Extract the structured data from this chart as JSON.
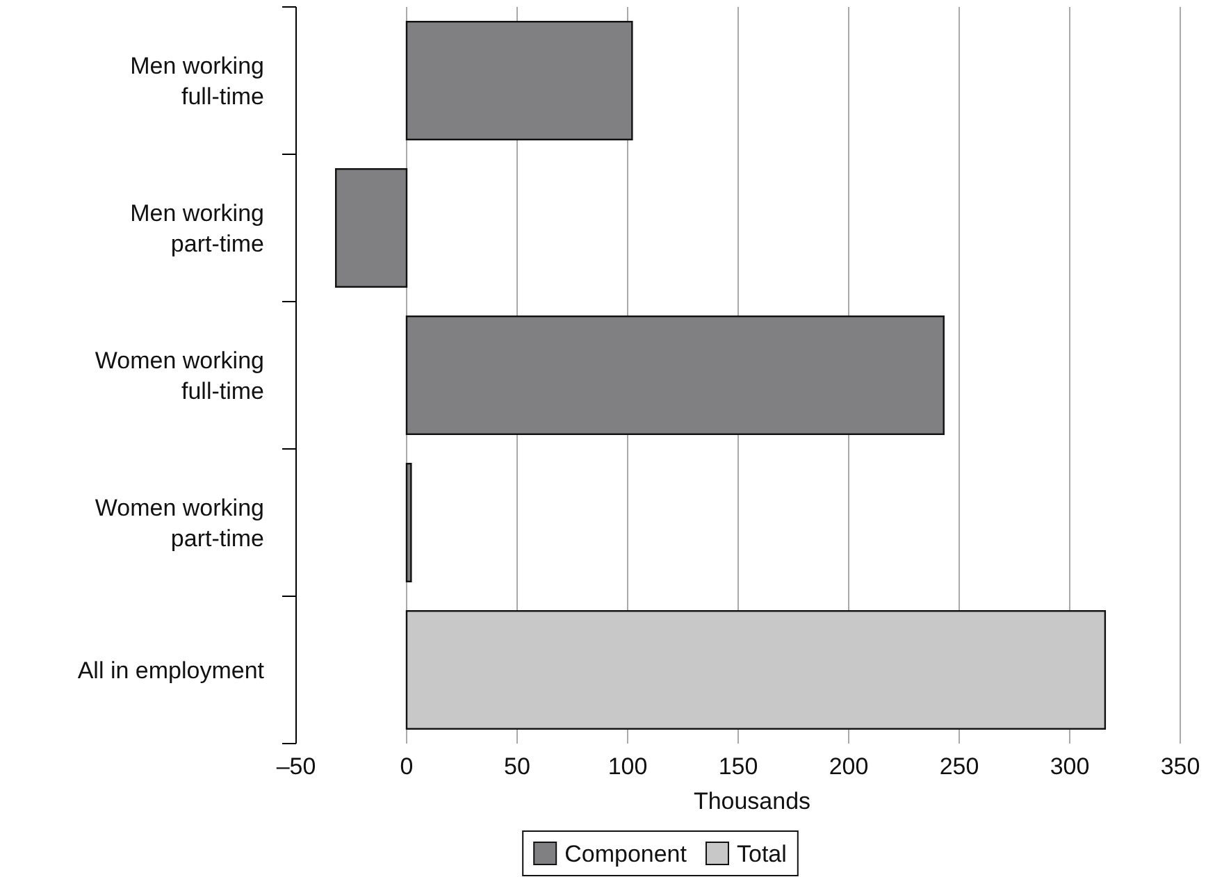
{
  "chart_data": {
    "type": "bar",
    "orientation": "horizontal",
    "categories": [
      "Men working\nfull-time",
      "Men working\npart-time",
      "Women working\nfull-time",
      "Women working\npart-time",
      "All in employment"
    ],
    "series": [
      {
        "name": "Component",
        "color": "#808083",
        "values": [
          102,
          -32,
          243,
          2,
          null
        ]
      },
      {
        "name": "Total",
        "color": "#c8c8c9",
        "values": [
          null,
          null,
          null,
          null,
          316
        ]
      }
    ],
    "xlabel": "Thousands",
    "xlim": [
      -50,
      350
    ],
    "xticks": [
      {
        "value": -50,
        "label": "–50"
      },
      0,
      50,
      100,
      150,
      200,
      250,
      300,
      350
    ],
    "grid": "x",
    "legend": "bottom"
  }
}
